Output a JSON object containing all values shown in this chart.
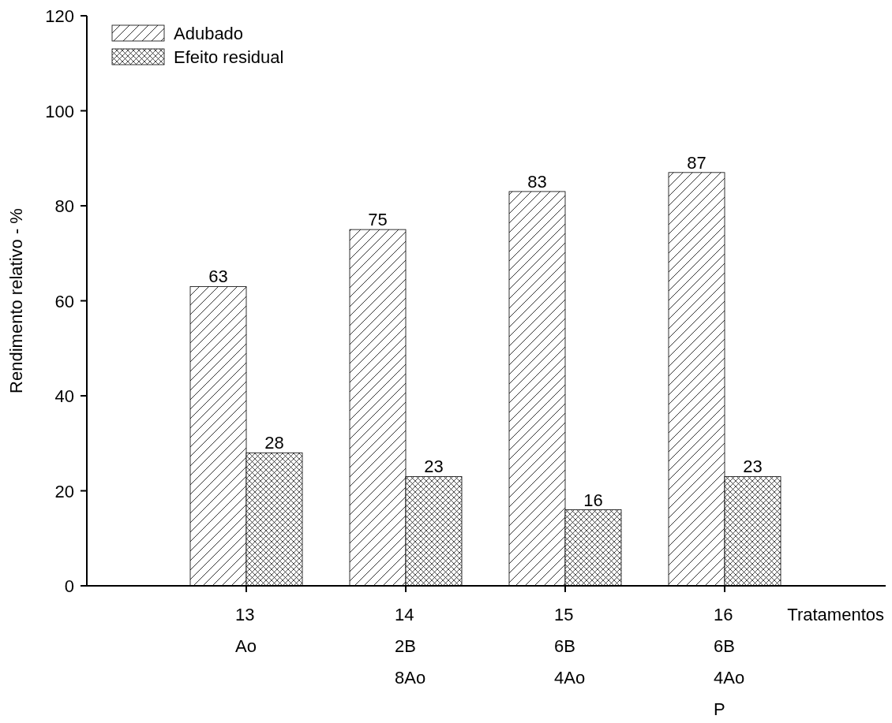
{
  "chart_data": {
    "type": "bar",
    "ylabel": "Rendimento relativo - %",
    "xlabel": "Tratamentos",
    "categories": [
      "13\nAo",
      "14\n2B\n8Ao",
      "15\n6B\n4Ao",
      "16\n6B\n4Ao\nP"
    ],
    "series": [
      {
        "name": "Adubado",
        "color": "#000000",
        "values": [
          63,
          75,
          83,
          87
        ]
      },
      {
        "name": "Efeito residual",
        "color": "#000000",
        "values": [
          28,
          23,
          16,
          23
        ]
      }
    ],
    "ylim": [
      0,
      120
    ],
    "yticks": [
      0,
      20,
      40,
      60,
      80,
      100,
      120
    ],
    "data_labels": true,
    "legend": "top left"
  }
}
